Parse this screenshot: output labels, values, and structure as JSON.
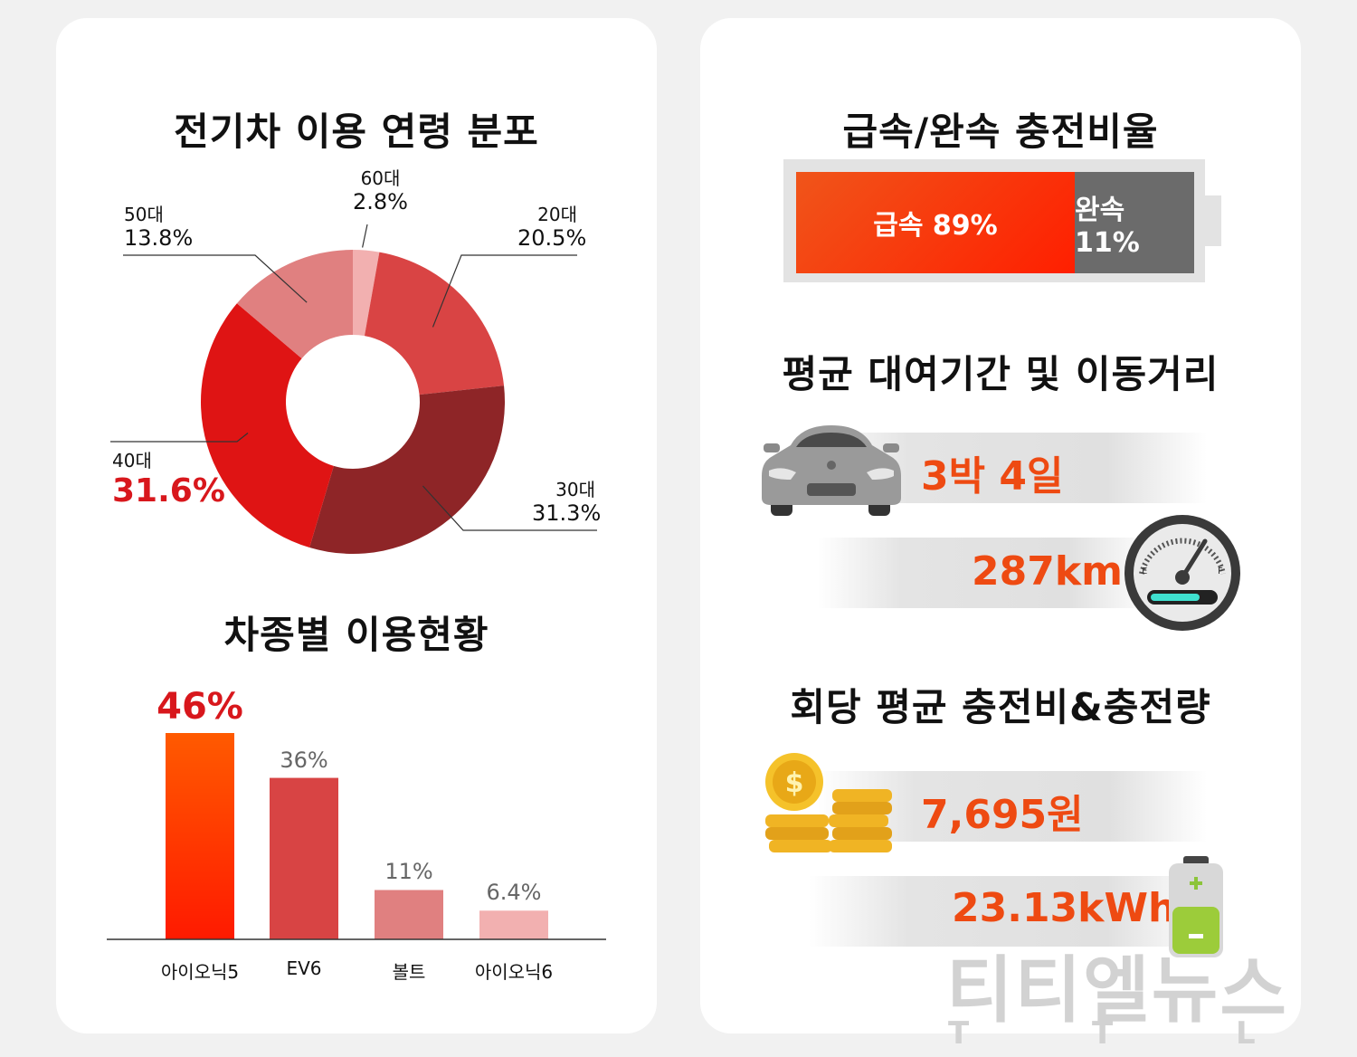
{
  "left": {
    "title_age": "전기차 이용 연령 분포",
    "title_model": "차종별 이용현황"
  },
  "right": {
    "title_charge": "급속/완속 충전비율",
    "title_rental": "평균 대여기간 및 이동거리",
    "title_cost": "회당 평균 충전비&충전량",
    "rental_duration": "3박 4일",
    "distance": "287km",
    "gauge_e": "E",
    "gauge_f": "F",
    "avg_cost": "7,695원",
    "avg_energy": "23.13kWh"
  },
  "watermark": {
    "name": "티티엘뉴스",
    "letters": "T T L"
  },
  "colors": {
    "accent_red": "#d8171c",
    "orange": "#ee4a12",
    "gray": "#6b6b6b"
  },
  "chart_data": [
    {
      "type": "pie",
      "title": "전기차 이용 연령 분포",
      "categories": [
        "20대",
        "30대",
        "40대",
        "50대",
        "60대"
      ],
      "values": [
        20.5,
        31.3,
        31.6,
        13.8,
        2.8
      ],
      "value_labels": [
        "20.5%",
        "31.3%",
        "31.6%",
        "13.8%",
        "2.8%"
      ],
      "colors": [
        "#d94444",
        "#8e2527",
        "#df1414",
        "#e08080",
        "#f2b0b0"
      ]
    },
    {
      "type": "bar",
      "title": "차종별 이용현황",
      "categories": [
        "아이오닉5",
        "EV6",
        "볼트",
        "아이오닉6"
      ],
      "values": [
        46,
        36,
        11,
        6.4
      ],
      "value_labels": [
        "46%",
        "36%",
        "11%",
        "6.4%"
      ],
      "colors": [
        "#ff3300",
        "#d84444",
        "#e08080",
        "#f2b0b0"
      ],
      "ylim": [
        0,
        50
      ]
    },
    {
      "type": "bar",
      "title": "급속/완속 충전비율",
      "categories": [
        "급속",
        "완속"
      ],
      "values": [
        89,
        11
      ],
      "value_labels": [
        "급속 89%",
        "완속 11%"
      ],
      "colors": [
        "#ff3300",
        "#6b6b6b"
      ]
    }
  ]
}
